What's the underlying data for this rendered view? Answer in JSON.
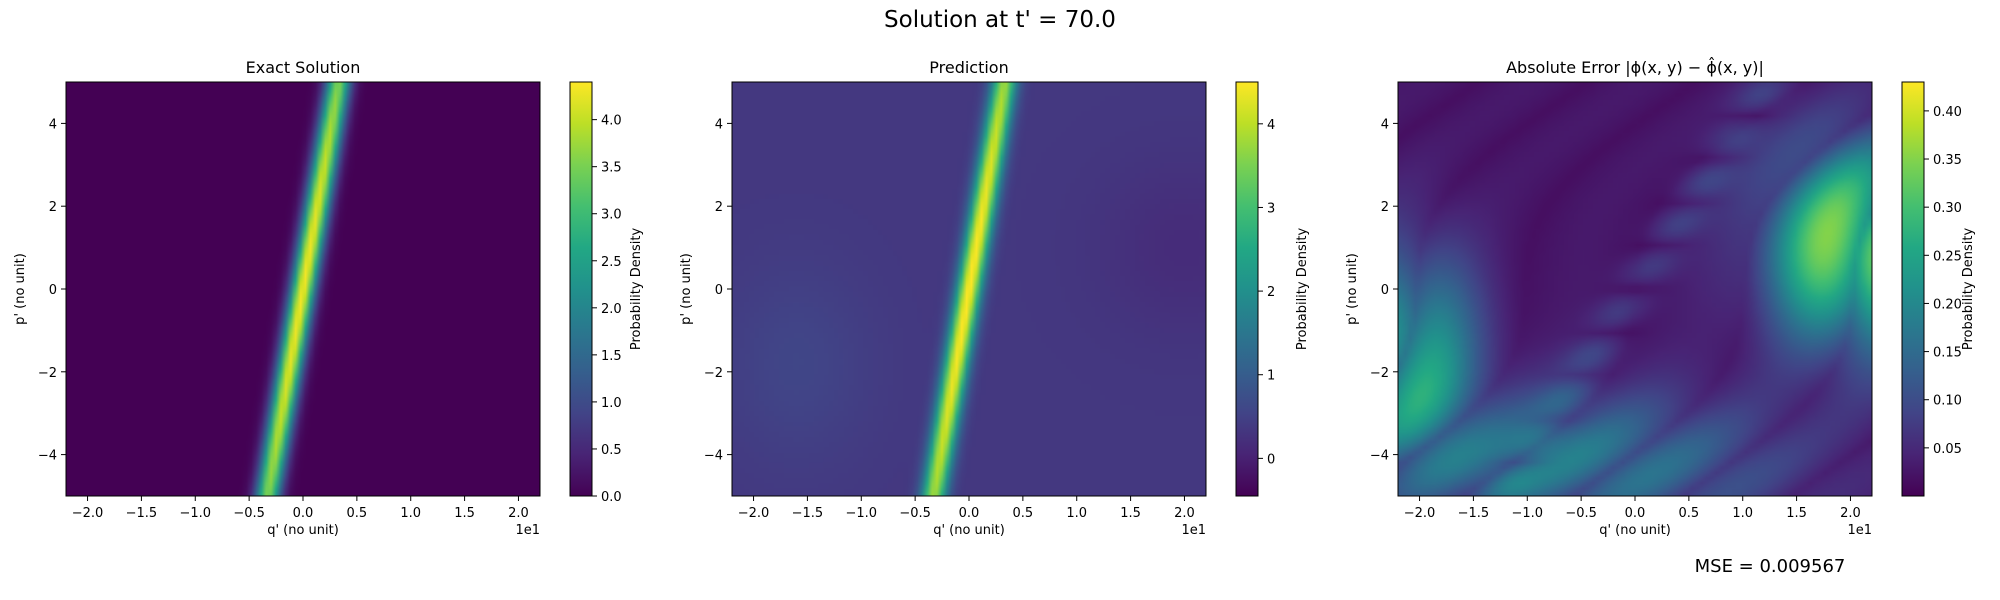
{
  "figure": {
    "suptitle": "Solution at t' = 70.0",
    "footer": "MSE = 0.009567"
  },
  "colormap": "viridis",
  "chart_data": [
    {
      "type": "heatmap",
      "title": "Exact Solution",
      "xlabel": "q' (no unit)",
      "ylabel": "p' (no unit)",
      "x_offset_label": "1e1",
      "xlim": [
        -2.2,
        2.2
      ],
      "ylim": [
        -5,
        5
      ],
      "xticks": [
        -2.0,
        -1.5,
        -1.0,
        -0.5,
        0.0,
        0.5,
        1.0,
        1.5,
        2.0
      ],
      "xtick_labels": [
        "−2.0",
        "−1.5",
        "−1.0",
        "−0.5",
        "0.0",
        "0.5",
        "1.0",
        "1.5",
        "2.0"
      ],
      "yticks": [
        4,
        2,
        0,
        -2,
        -4
      ],
      "ytick_labels": [
        "4",
        "2",
        "0",
        "−2",
        "−4"
      ],
      "colorbar": {
        "label": "Probability Density",
        "range": [
          0,
          4.4
        ],
        "ticks": [
          0.0,
          0.5,
          1.0,
          1.5,
          2.0,
          2.5,
          3.0,
          3.5,
          4.0
        ],
        "tick_labels": [
          "0.0",
          "0.5",
          "1.0",
          "1.5",
          "2.0",
          "2.5",
          "3.0",
          "3.5",
          "4.0"
        ]
      },
      "field": "exact"
    },
    {
      "type": "heatmap",
      "title": "Prediction",
      "xlabel": "q' (no unit)",
      "ylabel": "p' (no unit)",
      "x_offset_label": "1e1",
      "xlim": [
        -2.2,
        2.2
      ],
      "ylim": [
        -5,
        5
      ],
      "xticks": [
        -2.0,
        -1.5,
        -1.0,
        -0.5,
        0.0,
        0.5,
        1.0,
        1.5,
        2.0
      ],
      "xtick_labels": [
        "−2.0",
        "−1.5",
        "−1.0",
        "−0.5",
        "0.0",
        "0.5",
        "1.0",
        "1.5",
        "2.0"
      ],
      "yticks": [
        4,
        2,
        0,
        -2,
        -4
      ],
      "ytick_labels": [
        "4",
        "2",
        "0",
        "−2",
        "−4"
      ],
      "colorbar": {
        "label": "Probability Density",
        "range": [
          -0.45,
          4.5
        ],
        "ticks": [
          0,
          1,
          2,
          3,
          4
        ],
        "tick_labels": [
          "0",
          "1",
          "2",
          "3",
          "4"
        ]
      },
      "field": "prediction"
    },
    {
      "type": "heatmap",
      "title": "Absolute Error |ϕ(x, y) − ϕ̂(x, y)|",
      "xlabel": "q' (no unit)",
      "ylabel": "p' (no unit)",
      "x_offset_label": "1e1",
      "xlim": [
        -2.2,
        2.2
      ],
      "ylim": [
        -5,
        5
      ],
      "xticks": [
        -2.0,
        -1.5,
        -1.0,
        -0.5,
        0.0,
        0.5,
        1.0,
        1.5,
        2.0
      ],
      "xtick_labels": [
        "−2.0",
        "−1.5",
        "−1.0",
        "−0.5",
        "0.0",
        "0.5",
        "1.0",
        "1.5",
        "2.0"
      ],
      "yticks": [
        4,
        2,
        0,
        -2,
        -4
      ],
      "ytick_labels": [
        "4",
        "2",
        "0",
        "−2",
        "−4"
      ],
      "colorbar": {
        "label": "Probability Density",
        "range": [
          0.0,
          0.43
        ],
        "ticks": [
          0.05,
          0.1,
          0.15,
          0.2,
          0.25,
          0.3,
          0.35,
          0.4
        ],
        "tick_labels": [
          "0.05",
          "0.10",
          "0.15",
          "0.20",
          "0.25",
          "0.30",
          "0.35",
          "0.40"
        ]
      },
      "field": "error"
    }
  ]
}
